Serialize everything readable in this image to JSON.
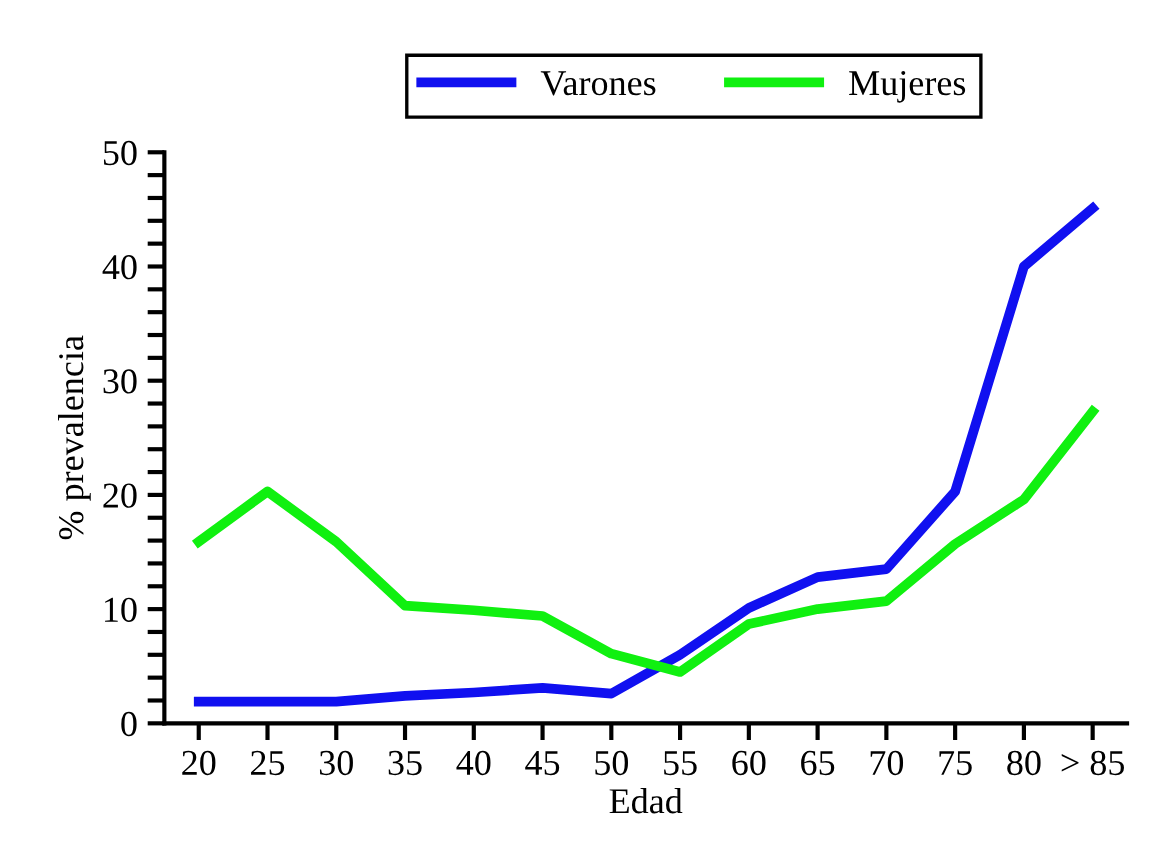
{
  "chart_data": {
    "type": "line",
    "xlabel": "Edad",
    "ylabel": "% prevalencia",
    "categories": [
      "20",
      "25",
      "30",
      "35",
      "40",
      "45",
      "50",
      "55",
      "60",
      "65",
      "70",
      "75",
      "80",
      "> 85"
    ],
    "series": [
      {
        "name": "Varones",
        "color": "#1010f0",
        "values": [
          1.9,
          1.9,
          1.9,
          2.4,
          2.7,
          3.1,
          2.6,
          6,
          10.1,
          12.8,
          13.5,
          20.3,
          40,
          45.1
        ]
      },
      {
        "name": "Mujeres",
        "color": "#10f010",
        "values": [
          15.9,
          20.3,
          15.9,
          10.3,
          9.9,
          9.4,
          6.1,
          4.5,
          8.7,
          10,
          10.7,
          15.7,
          19.6,
          27.3
        ]
      }
    ],
    "ylim": [
      0,
      50
    ],
    "yticks": [
      0,
      {
        "value": 2,
        "label": null
      },
      {
        "value": 4,
        "label": null
      },
      {
        "value": 6,
        "label": null
      },
      {
        "value": 8,
        "label": null
      },
      10,
      {
        "value": 12,
        "label": null
      },
      {
        "value": 14,
        "label": null
      },
      {
        "value": 16,
        "label": null
      },
      {
        "value": 18,
        "label": null
      },
      20,
      {
        "value": 22,
        "label": null
      },
      {
        "value": 24,
        "label": null
      },
      {
        "value": 26,
        "label": null
      },
      {
        "value": 28,
        "label": null
      },
      30,
      {
        "value": 32,
        "label": null
      },
      {
        "value": 34,
        "label": null
      },
      {
        "value": 36,
        "label": null
      },
      {
        "value": 38,
        "label": null
      },
      40,
      {
        "value": 42,
        "label": null
      },
      {
        "value": 44,
        "label": null
      },
      {
        "value": 46,
        "label": null
      },
      {
        "value": 48,
        "label": null
      },
      50
    ],
    "grid": false,
    "legend": "top",
    "marker": "none",
    "line_style": "solid"
  }
}
